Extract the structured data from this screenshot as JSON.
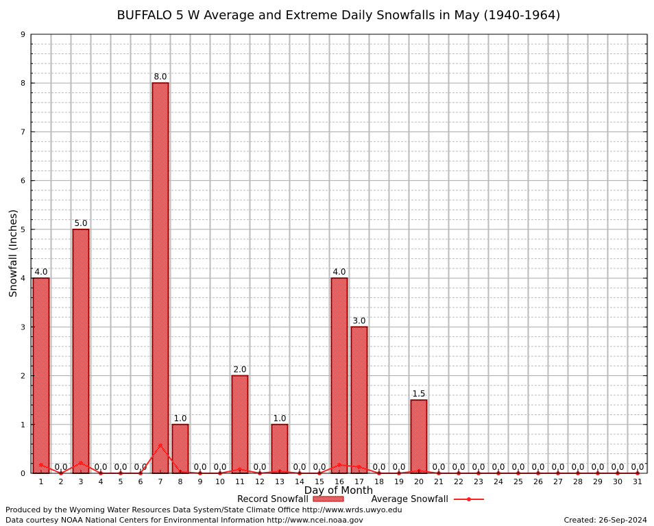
{
  "chart_data": {
    "type": "bar",
    "title": "BUFFALO 5 W Average and Extreme Daily Snowfalls in May (1940-1964)",
    "xlabel": "Day of Month",
    "ylabel": "Snowfall (Inches)",
    "ylim": [
      0,
      9
    ],
    "yticks": [
      "0",
      "1",
      "2",
      "3",
      "4",
      "5",
      "6",
      "7",
      "8",
      "9"
    ],
    "categories": [
      "1",
      "2",
      "3",
      "4",
      "5",
      "6",
      "7",
      "8",
      "9",
      "10",
      "11",
      "12",
      "13",
      "14",
      "15",
      "16",
      "17",
      "18",
      "19",
      "20",
      "21",
      "22",
      "23",
      "24",
      "25",
      "26",
      "27",
      "28",
      "29",
      "30",
      "31"
    ],
    "series": [
      {
        "name": "Record Snowfall",
        "type": "bar",
        "values": [
          4,
          0,
          5,
          0,
          0,
          0,
          8,
          1,
          0,
          0,
          2,
          0,
          1,
          0,
          0,
          4,
          3,
          0,
          0,
          1.5,
          0,
          0,
          0,
          0,
          0,
          0,
          0,
          0,
          0,
          0,
          0
        ],
        "labels": [
          "4.0",
          "0.0",
          "5.0",
          "0.0",
          "0.0",
          "0.0",
          "8.0",
          "1.0",
          "0.0",
          "0.0",
          "2.0",
          "0.0",
          "1.0",
          "0.0",
          "0.0",
          "4.0",
          "3.0",
          "0.0",
          "0.0",
          "1.5",
          "0.0",
          "0.0",
          "0.0",
          "0.0",
          "0.0",
          "0.0",
          "0.0",
          "0.0",
          "0.0",
          "0.0",
          "0.0"
        ]
      },
      {
        "name": "Average Snowfall",
        "type": "line",
        "values": [
          0.17,
          0,
          0.21,
          0,
          0,
          0,
          0.57,
          0.03,
          0,
          0,
          0.08,
          0,
          0.04,
          0,
          0,
          0.17,
          0.13,
          0,
          0,
          0.05,
          0,
          0,
          0,
          0,
          0,
          0,
          0,
          0,
          0,
          0,
          0
        ]
      }
    ],
    "grid": true,
    "legend": "bottom",
    "colors": {
      "bar": "#cc0000",
      "bar_edge": "#8b0000",
      "line": "#ff2020"
    }
  },
  "footer": {
    "produced": "Produced by the Wyoming Water Resources Data System/State Climate Office http://www.wrds.uwyo.edu",
    "courtesy": "Data courtesy NOAA National Centers for Environmental Information http://www.ncei.noaa.gov",
    "created": "Created: 26-Sep-2024"
  }
}
